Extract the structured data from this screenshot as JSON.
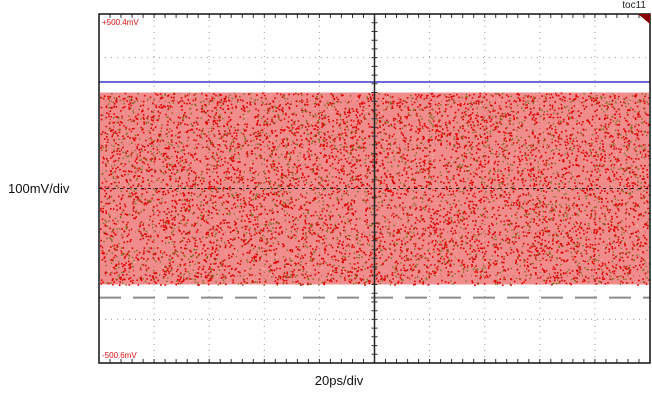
{
  "figure_tag": "toc11",
  "chart_data": {
    "type": "scatter",
    "title": "",
    "xlabel": "20ps/div",
    "ylabel": "100mV/div",
    "x_divisions": 10,
    "y_divisions": 8,
    "screen_top_label": "+500.4mV",
    "screen_bottom_label": "-500.6mV",
    "eye_band_mV": [
      -220,
      220
    ],
    "upper_marker_mV": 244,
    "lower_marker_mV": -250,
    "colors": {
      "frame": "#111111",
      "grid": "#9a9a9a",
      "trace_primary": "#e00000",
      "trace_secondary": "#7d6a1e",
      "upper_marker": "#6b6bd6",
      "lower_marker": "#8c8c8c",
      "screen_labels": "#e01010"
    }
  }
}
